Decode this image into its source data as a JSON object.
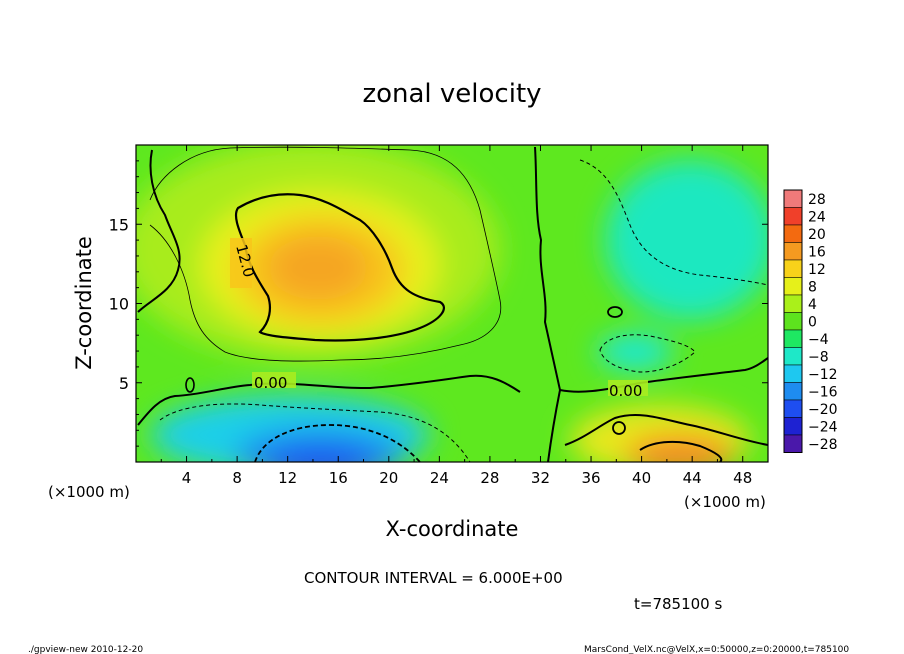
{
  "chart_data": {
    "type": "heatmap",
    "title": "zonal velocity",
    "xlabel": "X-coordinate",
    "ylabel": "Z-coordinate",
    "x_unit": "(×1000 m)",
    "y_unit": "(×1000 m)",
    "xlim": [
      0,
      50
    ],
    "ylim": [
      0,
      20
    ],
    "x_ticks": [
      "4",
      "8",
      "12",
      "16",
      "20",
      "24",
      "28",
      "32",
      "36",
      "40",
      "44",
      "48"
    ],
    "y_ticks": [
      "5",
      "10",
      "15"
    ],
    "contour_interval_text": "CONTOUR INTERVAL = 6.000E+00",
    "contour_labels": [
      "12.0",
      "0.00",
      "0.00"
    ],
    "colorbar": {
      "levels": [
        "28",
        "24",
        "20",
        "16",
        "12",
        "8",
        "4",
        "0",
        "−4",
        "−8",
        "−12",
        "−16",
        "−20",
        "−24",
        "−28"
      ],
      "colors": [
        "#f07a7a",
        "#f0402a",
        "#f36a10",
        "#f59a20",
        "#f8d21a",
        "#e6f01a",
        "#aaf01a",
        "#5de31e",
        "#1ee862",
        "#1ee8c8",
        "#1ec8f0",
        "#1e8cf0",
        "#1e4ef0",
        "#1e22d2",
        "#4a18aa"
      ]
    },
    "features": [
      {
        "kind": "max",
        "x": 15,
        "z": 12.5,
        "value": 18
      },
      {
        "kind": "min",
        "x": 16,
        "z": 1,
        "value": -22
      },
      {
        "kind": "max",
        "x": 43,
        "z": 1,
        "value": 22
      },
      {
        "kind": "min",
        "x": 41,
        "z": 14,
        "value": -8
      },
      {
        "kind": "min",
        "x": 39,
        "z": 7,
        "value": -8
      }
    ]
  },
  "annotations": {
    "time": "t=785100 s",
    "footer_left": "./gpview-new  2010-12-20",
    "footer_right": "MarsCond_VelX.nc@VelX,x=0:50000,z=0:20000,t=785100"
  }
}
